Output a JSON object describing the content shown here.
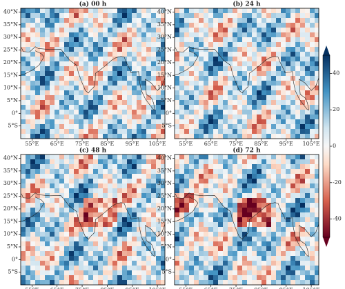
{
  "panels": [
    {
      "title": "(a) 00 h"
    },
    {
      "title": "(b) 24 h"
    },
    {
      "title": "(c) 48 h"
    },
    {
      "title": "(d) 72 h"
    }
  ],
  "lon_range": [
    50.5,
    108
  ],
  "lat_range": [
    -10,
    41.5
  ],
  "lat_ticks": [
    {
      "value": 40,
      "label": "40°N"
    },
    {
      "value": 35,
      "label": "35°N"
    },
    {
      "value": 30,
      "label": "30°N"
    },
    {
      "value": 25,
      "label": "25°N"
    },
    {
      "value": 20,
      "label": "20°N"
    },
    {
      "value": 15,
      "label": "15°N"
    },
    {
      "value": 10,
      "label": "10°N"
    },
    {
      "value": 5,
      "label": "5°N"
    },
    {
      "value": 0,
      "label": "0°"
    },
    {
      "value": -5,
      "label": "5°S"
    }
  ],
  "lon_ticks": [
    {
      "value": 55,
      "label": "55°E"
    },
    {
      "value": 65,
      "label": "65°E"
    },
    {
      "value": 75,
      "label": "75°E"
    },
    {
      "value": 85,
      "label": "85°E"
    },
    {
      "value": 95,
      "label": "95°E"
    },
    {
      "value": 105,
      "label": "105°E"
    }
  ],
  "colorbar": {
    "lim": [
      -50,
      50
    ],
    "ticks": [
      40,
      20,
      0,
      -20,
      -40
    ]
  }
}
